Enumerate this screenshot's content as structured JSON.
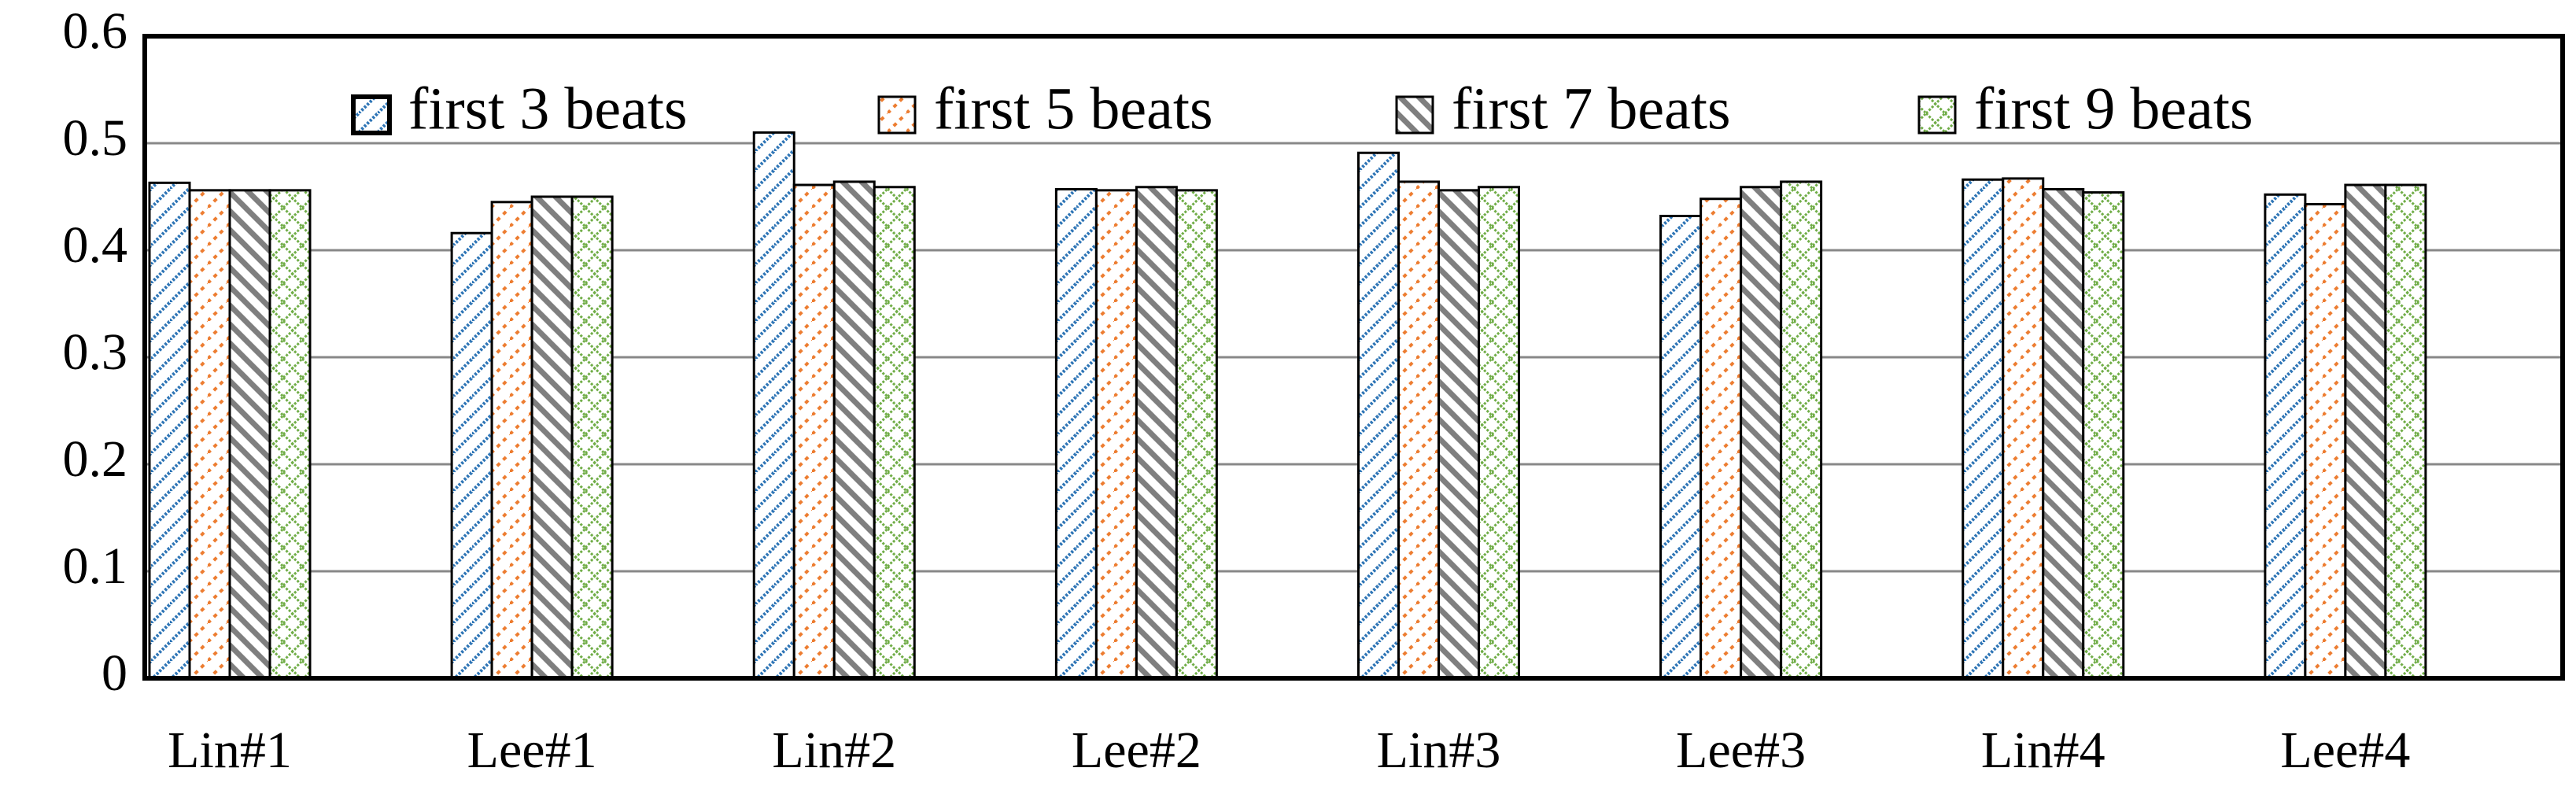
{
  "chart_data": {
    "type": "bar",
    "categories": [
      "Lin#1",
      "Lee#1",
      "Lin#2",
      "Lee#2",
      "Lin#3",
      "Lee#3",
      "Lin#4",
      "Lee#4"
    ],
    "series": [
      {
        "name": "first 3 beats",
        "color": "#2e75b6",
        "values": [
          0.463,
          0.416,
          0.51,
          0.457,
          0.491,
          0.432,
          0.466,
          0.452
        ]
      },
      {
        "name": "first 5 beats",
        "color": "#ed7d31",
        "values": [
          0.456,
          0.445,
          0.461,
          0.456,
          0.464,
          0.448,
          0.467,
          0.443
        ]
      },
      {
        "name": "first 7 beats",
        "color": "#7f7f7f",
        "values": [
          0.456,
          0.45,
          0.464,
          0.459,
          0.456,
          0.459,
          0.457,
          0.461
        ]
      },
      {
        "name": "first 9 beats",
        "color": "#70ad47",
        "values": [
          0.456,
          0.45,
          0.459,
          0.456,
          0.459,
          0.464,
          0.454,
          0.461
        ]
      }
    ],
    "ylim": [
      0,
      0.6
    ],
    "yticks": [
      0,
      0.1,
      0.2,
      0.3,
      0.4,
      0.5,
      0.6
    ],
    "grid": true,
    "legend": "top"
  }
}
